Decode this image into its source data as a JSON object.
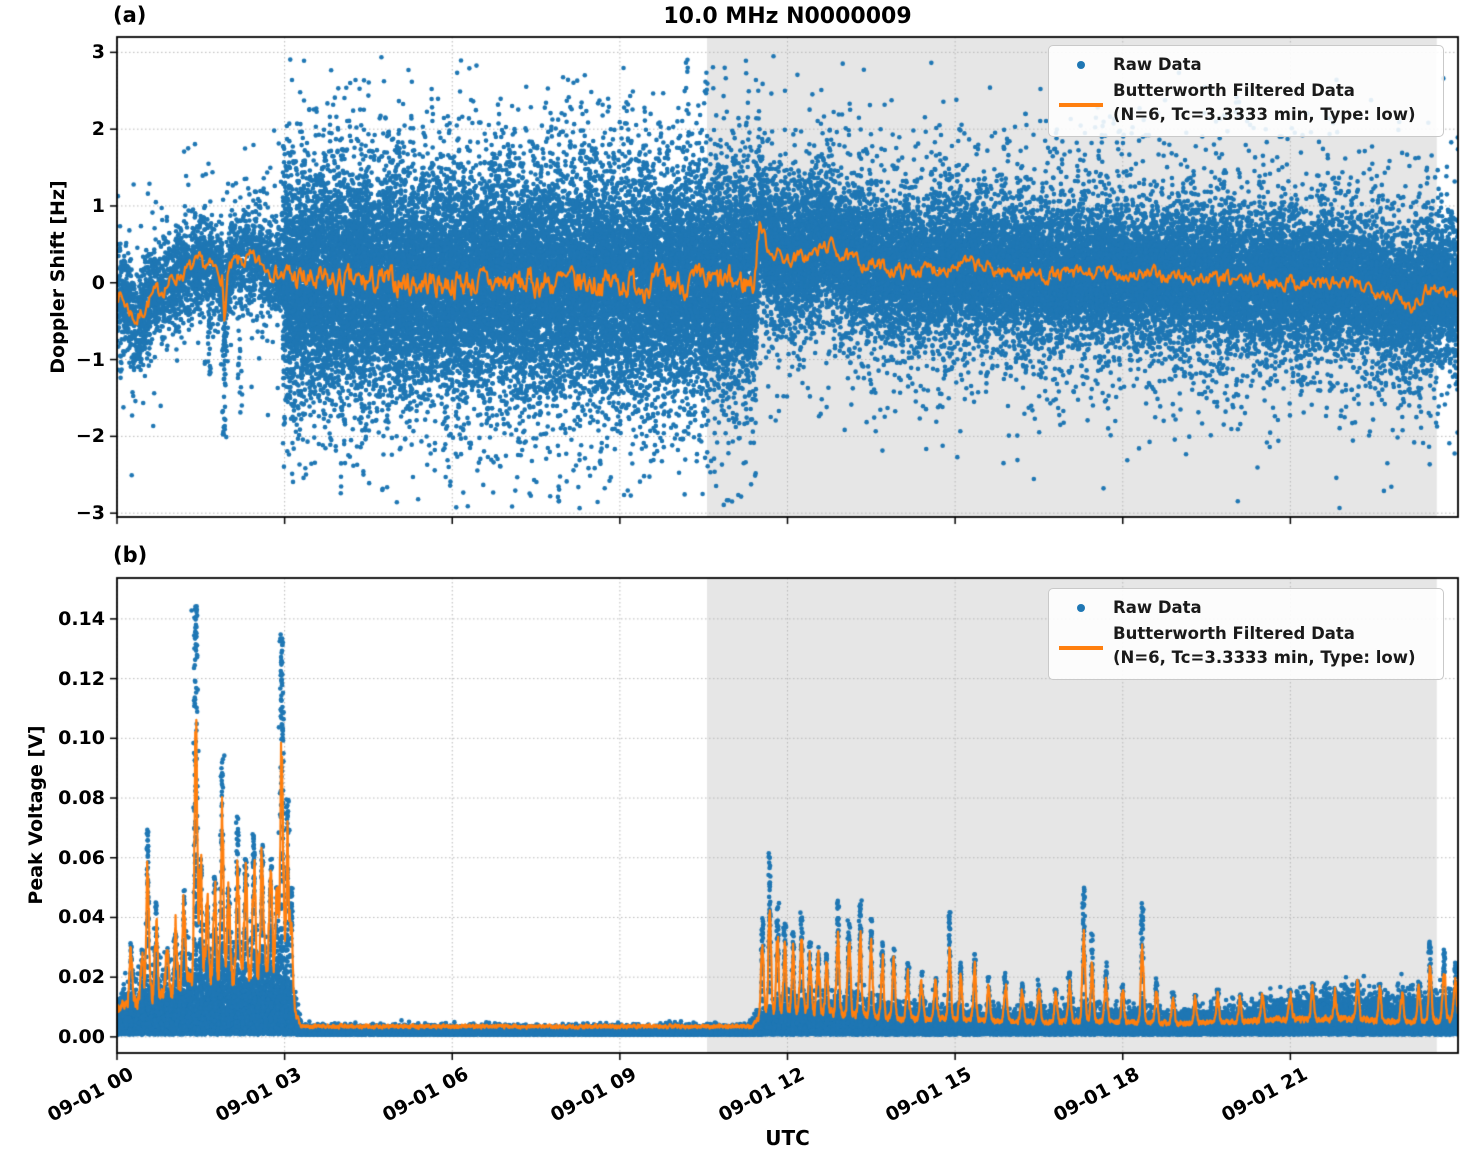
{
  "title": "10.0 MHz N0000009",
  "xlabel": "UTC",
  "xtick_labels": [
    "09-01 00",
    "09-01 03",
    "09-01 06",
    "09-01 09",
    "09-01 12",
    "09-01 15",
    "09-01 18",
    "09-01 21"
  ],
  "legend": {
    "raw_label": "Raw Data",
    "filtered_label_line1": "Butterworth Filtered Data",
    "filtered_label_line2": "(N=6, Tc=3.3333 min, Type: low)"
  },
  "panel_a": {
    "tag": "(a)",
    "ylabel": "Doppler Shift [Hz]",
    "ytick_labels": [
      "3",
      "2",
      "1",
      "0",
      "−1",
      "−2",
      "−3"
    ]
  },
  "panel_b": {
    "tag": "(b)",
    "ylabel": "Peak Voltage [V]",
    "ytick_labels": [
      "0.14",
      "0.12",
      "0.10",
      "0.08",
      "0.06",
      "0.04",
      "0.02",
      "0.00"
    ]
  },
  "colors": {
    "raw": "#1f77b4",
    "filtered": "#ff7f0e",
    "shaded_region": "#e6e6e6",
    "grid": "#b8b8b8",
    "spine": "#000000"
  },
  "chart_data": [
    {
      "id": "doppler_shift",
      "type": "scatter",
      "panel": "a",
      "ylabel": "Doppler Shift [Hz]",
      "xlabel_units": "hours UTC on 09-01",
      "xlim_hours": [
        0,
        24
      ],
      "ylim": [
        -3.05,
        3.2
      ],
      "yticks": [
        3,
        2,
        1,
        0,
        -1,
        -2,
        -3
      ],
      "xtick_hours": [
        0,
        3,
        6,
        9,
        12,
        15,
        18,
        21
      ],
      "grid": true,
      "legend_position": "upper right",
      "shaded_region_hours": [
        10.56,
        23.62
      ],
      "raw_scatter_model": {
        "segments": [
          {
            "t0": 0.0,
            "t1": 2.97,
            "sigma": 0.3,
            "tail_sigma": 0.75,
            "tail_frac": 0.1,
            "pts_per_hour": 900,
            "center": "filtered"
          },
          {
            "t0": 2.97,
            "t1": 11.45,
            "sigma": 0.68,
            "tail_sigma": 1.15,
            "tail_frac": 0.22,
            "pts_per_hour": 2600,
            "center": 0,
            "ymin": -2.95,
            "ymax": 2.95
          },
          {
            "t0": 11.45,
            "t1": 24.0,
            "sigma": 0.4,
            "tail_sigma": 0.85,
            "tail_frac": 0.22,
            "pts_per_hour": 2000,
            "center": "filtered"
          }
        ],
        "outlier_streaks": [
          {
            "t": 0.07,
            "ymin": -1.55,
            "ymax": -0.7,
            "n": 8
          },
          {
            "t": 1.66,
            "ymin": -1.35,
            "ymax": -0.3,
            "n": 16
          },
          {
            "t": 1.92,
            "ymin": -2.05,
            "ymax": -0.4,
            "n": 30
          },
          {
            "t": 2.2,
            "ymin": -1.6,
            "ymax": -0.35,
            "n": 14
          },
          {
            "t": 7.9,
            "ymin": -2.9,
            "ymax": -2.2,
            "n": 6
          },
          {
            "t": 10.2,
            "ymin": 2.2,
            "ymax": 2.92,
            "n": 6
          },
          {
            "t": 10.55,
            "ymin": 2.3,
            "ymax": 2.8,
            "n": 5
          }
        ]
      },
      "filtered_line_model": {
        "base_keypoints": [
          [
            0,
            -0.1
          ],
          [
            0.35,
            -0.5
          ],
          [
            0.6,
            -0.2
          ],
          [
            1.1,
            0.1
          ],
          [
            1.5,
            0.25
          ],
          [
            1.8,
            0.15
          ],
          [
            1.88,
            0.1
          ],
          [
            1.92,
            -0.55
          ],
          [
            1.98,
            0.1
          ],
          [
            2.1,
            0.25
          ],
          [
            2.4,
            0.3
          ],
          [
            2.7,
            0.2
          ],
          [
            2.97,
            0.1
          ],
          [
            3.5,
            0.0
          ],
          [
            11.4,
            0.0
          ],
          [
            11.5,
            0.8
          ],
          [
            11.65,
            0.45
          ],
          [
            12.0,
            0.3
          ],
          [
            12.4,
            0.35
          ],
          [
            12.75,
            0.5
          ],
          [
            13.1,
            0.3
          ],
          [
            13.6,
            0.22
          ],
          [
            14.0,
            0.15
          ],
          [
            14.6,
            0.18
          ],
          [
            15.2,
            0.25
          ],
          [
            15.8,
            0.15
          ],
          [
            16.5,
            0.1
          ],
          [
            17.5,
            0.12
          ],
          [
            18.5,
            0.1
          ],
          [
            19.5,
            0.05
          ],
          [
            20.5,
            0.02
          ],
          [
            21.5,
            0.0
          ],
          [
            22.5,
            -0.05
          ],
          [
            23.15,
            -0.3
          ],
          [
            23.5,
            -0.05
          ],
          [
            24,
            -0.15
          ]
        ],
        "jitter_amp_keypoints": [
          [
            0,
            0.1
          ],
          [
            2.9,
            0.1
          ],
          [
            3.05,
            0.17
          ],
          [
            11.4,
            0.17
          ],
          [
            11.55,
            0.09
          ],
          [
            24,
            0.09
          ]
        ],
        "sample_dt_hours": 0.02
      }
    },
    {
      "id": "peak_voltage",
      "type": "scatter",
      "panel": "b",
      "ylabel": "Peak Voltage [V]",
      "xlabel_units": "hours UTC on 09-01",
      "xlim_hours": [
        0,
        24
      ],
      "ylim": [
        -0.0054,
        0.1537
      ],
      "yticks": [
        0.14,
        0.12,
        0.1,
        0.08,
        0.06,
        0.04,
        0.02,
        0.0
      ],
      "xtick_hours": [
        0,
        3,
        6,
        9,
        12,
        15,
        18,
        21
      ],
      "grid": true,
      "legend_position": "upper right",
      "shaded_region_hours": [
        10.56,
        23.62
      ],
      "raw_scatter_model": {
        "baseline_amp_keypoints": [
          [
            0,
            0.006
          ],
          [
            0.5,
            0.008
          ],
          [
            1.0,
            0.009
          ],
          [
            1.5,
            0.012
          ],
          [
            2.0,
            0.012
          ],
          [
            3.0,
            0.012
          ],
          [
            3.15,
            0.006
          ],
          [
            3.3,
            0.0012
          ],
          [
            11.3,
            0.0012
          ],
          [
            11.45,
            0.003
          ],
          [
            12,
            0.005
          ],
          [
            13,
            0.005
          ],
          [
            14,
            0.004
          ],
          [
            16,
            0.0035
          ],
          [
            18,
            0.0035
          ],
          [
            19,
            0.003
          ],
          [
            20,
            0.0035
          ],
          [
            21,
            0.005
          ],
          [
            22,
            0.006
          ],
          [
            23,
            0.005
          ],
          [
            24,
            0.006
          ]
        ],
        "pts_per_hour": 1800,
        "spikes": [
          [
            0.25,
            0.032
          ],
          [
            0.45,
            0.03
          ],
          [
            0.55,
            0.07
          ],
          [
            0.7,
            0.045
          ],
          [
            0.9,
            0.03
          ],
          [
            1.05,
            0.035
          ],
          [
            1.2,
            0.05
          ],
          [
            1.41,
            0.145
          ],
          [
            1.5,
            0.06
          ],
          [
            1.62,
            0.045
          ],
          [
            1.75,
            0.055
          ],
          [
            1.88,
            0.095
          ],
          [
            2.0,
            0.05
          ],
          [
            2.16,
            0.075
          ],
          [
            2.3,
            0.06
          ],
          [
            2.45,
            0.07
          ],
          [
            2.6,
            0.065
          ],
          [
            2.75,
            0.06
          ],
          [
            2.87,
            0.05
          ],
          [
            2.95,
            0.135
          ],
          [
            3.05,
            0.08
          ],
          [
            3.12,
            0.05
          ],
          [
            11.55,
            0.04
          ],
          [
            11.68,
            0.062
          ],
          [
            11.82,
            0.045
          ],
          [
            11.95,
            0.038
          ],
          [
            12.1,
            0.035
          ],
          [
            12.25,
            0.043
          ],
          [
            12.4,
            0.032
          ],
          [
            12.55,
            0.03
          ],
          [
            12.7,
            0.028
          ],
          [
            12.9,
            0.046
          ],
          [
            13.1,
            0.04
          ],
          [
            13.3,
            0.046
          ],
          [
            13.5,
            0.04
          ],
          [
            13.7,
            0.032
          ],
          [
            13.9,
            0.03
          ],
          [
            14.15,
            0.025
          ],
          [
            14.4,
            0.022
          ],
          [
            14.65,
            0.02
          ],
          [
            14.9,
            0.042
          ],
          [
            15.1,
            0.025
          ],
          [
            15.35,
            0.028
          ],
          [
            15.6,
            0.02
          ],
          [
            15.9,
            0.022
          ],
          [
            16.2,
            0.018
          ],
          [
            16.5,
            0.02
          ],
          [
            16.8,
            0.016
          ],
          [
            17.05,
            0.022
          ],
          [
            17.3,
            0.05
          ],
          [
            17.45,
            0.035
          ],
          [
            17.7,
            0.025
          ],
          [
            18.0,
            0.02
          ],
          [
            18.35,
            0.045
          ],
          [
            18.6,
            0.02
          ],
          [
            18.9,
            0.015
          ],
          [
            19.3,
            0.014
          ],
          [
            19.7,
            0.016
          ],
          [
            20.1,
            0.015
          ],
          [
            20.5,
            0.014
          ],
          [
            21.0,
            0.016
          ],
          [
            21.4,
            0.018
          ],
          [
            21.8,
            0.016
          ],
          [
            22.2,
            0.02
          ],
          [
            22.6,
            0.018
          ],
          [
            23.0,
            0.016
          ],
          [
            23.3,
            0.02
          ],
          [
            23.5,
            0.032
          ],
          [
            23.75,
            0.03
          ],
          [
            23.95,
            0.025
          ]
        ]
      },
      "filtered_line_model": {
        "base_keypoints": [
          [
            0,
            0.01
          ],
          [
            0.5,
            0.012
          ],
          [
            1.0,
            0.015
          ],
          [
            1.5,
            0.02
          ],
          [
            2.0,
            0.018
          ],
          [
            2.5,
            0.022
          ],
          [
            3.0,
            0.02
          ],
          [
            3.15,
            0.01
          ],
          [
            3.3,
            0.0035
          ],
          [
            11.35,
            0.0035
          ],
          [
            11.5,
            0.006
          ],
          [
            12,
            0.008
          ],
          [
            13,
            0.008
          ],
          [
            14,
            0.006
          ],
          [
            15,
            0.006
          ],
          [
            16,
            0.005
          ],
          [
            17,
            0.005
          ],
          [
            18,
            0.005
          ],
          [
            19,
            0.0045
          ],
          [
            20,
            0.005
          ],
          [
            21,
            0.006
          ],
          [
            22,
            0.006
          ],
          [
            23,
            0.005
          ],
          [
            24,
            0.006
          ]
        ],
        "spike_factor": 0.55,
        "spike_width_hours": 0.025,
        "sample_dt_hours": 0.004
      }
    }
  ]
}
